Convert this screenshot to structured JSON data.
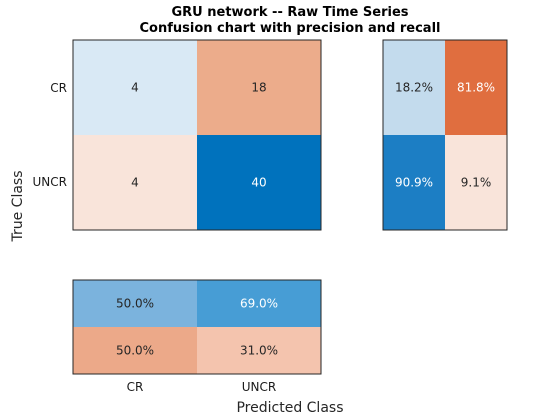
{
  "chart_data": {
    "type": "heatmap",
    "title": "GRU network -- Raw Time Series",
    "subtitle": "Confusion chart with precision and recall",
    "xlabel": "Predicted Class",
    "ylabel": "True Class",
    "classes": [
      "CR",
      "UNCR"
    ],
    "matrix": [
      [
        4,
        18
      ],
      [
        4,
        40
      ]
    ],
    "row_summary": [
      [
        "18.2%",
        "81.8%"
      ],
      [
        "90.9%",
        "9.1%"
      ]
    ],
    "column_summary": [
      [
        "50.0%",
        "69.0%"
      ],
      [
        "50.0%",
        "31.0%"
      ]
    ],
    "colors": {
      "matrix": [
        [
          "#d9e9f5",
          "#ecac8b"
        ],
        [
          "#f9e4da",
          "#0072bd"
        ]
      ],
      "row_summary": [
        [
          "#c3dbed",
          "#e06e3f"
        ],
        [
          "#1c7ec4",
          "#f9e4da"
        ]
      ],
      "column_summary": [
        [
          "#7bb3dd",
          "#479dd5"
        ],
        [
          "#eca989",
          "#f4c4ae"
        ]
      ],
      "text_light": "#ffffff",
      "text_dark": "#262626",
      "border": "#262626"
    }
  }
}
